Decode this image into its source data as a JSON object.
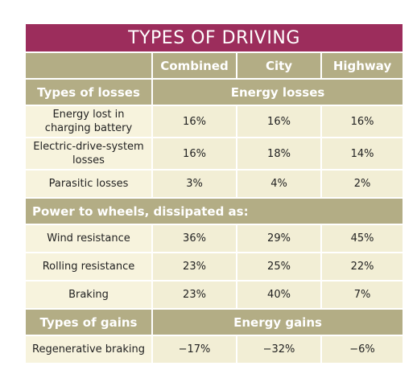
{
  "title": "TYPES OF DRIVING",
  "columns": [
    "Combined",
    "City",
    "Highway"
  ],
  "sections": [
    {
      "heading": "Types of losses",
      "span_label": "Energy losses",
      "rows": [
        {
          "label": "Energy lost in charging battery",
          "cells": [
            "16%",
            "16%",
            "16%"
          ]
        },
        {
          "label": "Electric-drive-system losses",
          "cells": [
            "16%",
            "18%",
            "14%"
          ]
        },
        {
          "label": "Parasitic losses",
          "cells": [
            "3%",
            "4%",
            "2%"
          ]
        }
      ]
    },
    {
      "heading": "Power to wheels, dissipated as:",
      "rows": [
        {
          "label": "Wind resistance",
          "cells": [
            "36%",
            "29%",
            "45%"
          ]
        },
        {
          "label": "Rolling resistance",
          "cells": [
            "23%",
            "25%",
            "22%"
          ]
        },
        {
          "label": "Braking",
          "cells": [
            "23%",
            "40%",
            "7%"
          ]
        }
      ]
    },
    {
      "heading": "Types of gains",
      "span_label": "Energy gains",
      "rows": [
        {
          "label": "Regenerative braking",
          "cells": [
            "−17%",
            "−32%",
            "−6%"
          ]
        }
      ]
    }
  ]
}
